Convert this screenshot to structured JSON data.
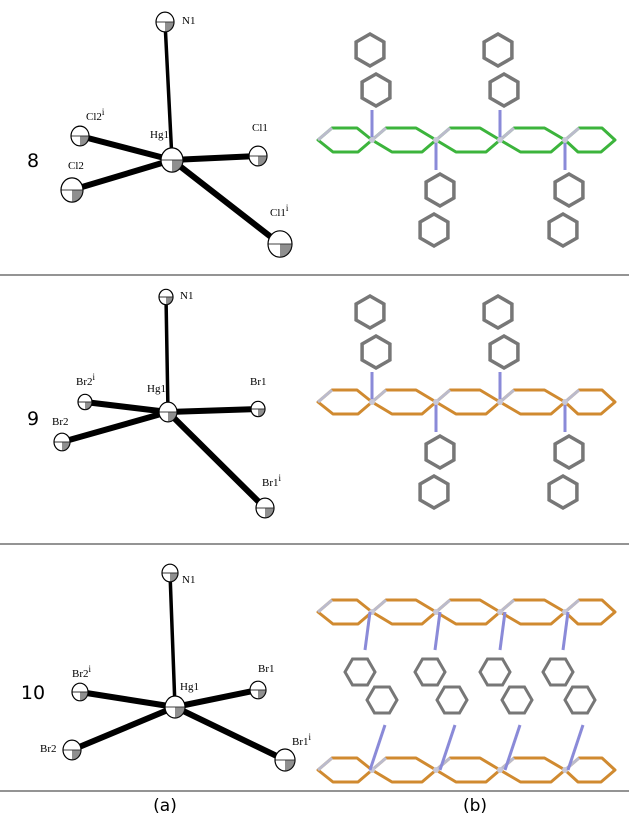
{
  "rows": [
    {
      "label": "8",
      "atoms": [
        {
          "name": "N1"
        },
        {
          "name": "Hg1"
        },
        {
          "name": "Cl2",
          "sup": "i"
        },
        {
          "name": "Cl1"
        },
        {
          "name": "Cl2"
        },
        {
          "name": "Cl1",
          "sup": "i"
        }
      ]
    },
    {
      "label": "9",
      "atoms": [
        {
          "name": "N1"
        },
        {
          "name": "Hg1"
        },
        {
          "name": "Br2",
          "sup": "i"
        },
        {
          "name": "Br1"
        },
        {
          "name": "Br2"
        },
        {
          "name": "Br1",
          "sup": "i"
        }
      ]
    },
    {
      "label": "10",
      "atoms": [
        {
          "name": "N1"
        },
        {
          "name": "Hg1"
        },
        {
          "name": "Br2",
          "sup": "i"
        },
        {
          "name": "Br1"
        },
        {
          "name": "Br2"
        },
        {
          "name": "Br1",
          "sup": "i"
        }
      ]
    }
  ],
  "captions": [
    "(a)",
    "(b)"
  ]
}
